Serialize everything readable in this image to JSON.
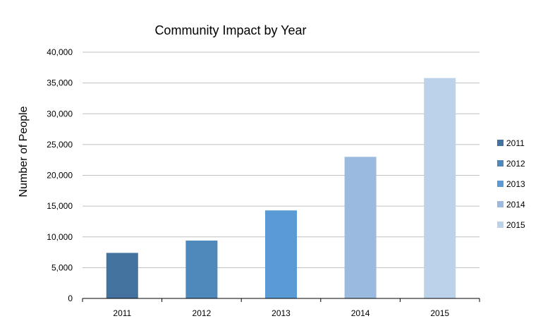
{
  "chart_data": {
    "type": "bar",
    "title": "Community Impact by Year",
    "xlabel": "",
    "ylabel": "Number of People",
    "categories": [
      "2011",
      "2012",
      "2013",
      "2014",
      "2015"
    ],
    "values": [
      7400,
      9400,
      14300,
      23000,
      35800
    ],
    "colors": [
      "#44729f",
      "#4f88bb",
      "#5b9bd5",
      "#9abae0",
      "#bcd1ea"
    ],
    "ylim": [
      0,
      40000
    ],
    "yticks": [
      0,
      5000,
      10000,
      15000,
      20000,
      25000,
      30000,
      35000,
      40000
    ],
    "ytick_labels": [
      "0",
      "5,000",
      "10,000",
      "15,000",
      "20,000",
      "25,000",
      "30,000",
      "35,000",
      "40,000"
    ],
    "grid": true,
    "legend": {
      "position": "right",
      "entries": [
        "2011",
        "2012",
        "2013",
        "2014",
        "2015"
      ]
    }
  }
}
